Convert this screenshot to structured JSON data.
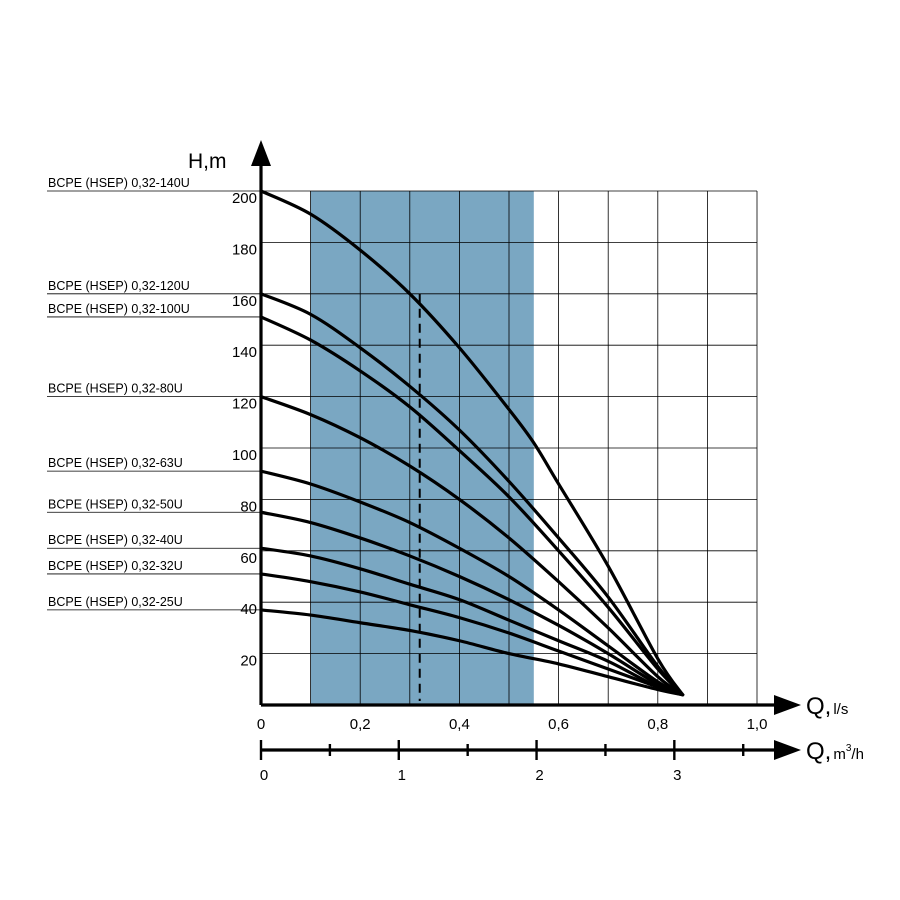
{
  "chart_data": {
    "type": "line",
    "title": "",
    "ylabel": "H,m",
    "xlabel": "Q,",
    "xlabel_unit": "l/s",
    "x2label": "Q,",
    "x2label_unit_base": "m",
    "x2label_unit_sup": "3",
    "x2label_unit_tail": "/h",
    "xlim": [
      0,
      1.0
    ],
    "ylim": [
      0,
      200
    ],
    "x_ticks": [
      "0",
      "0,2",
      "0,4",
      "0,6",
      "0,8",
      "1,0"
    ],
    "y_ticks": [
      "20",
      "40",
      "60",
      "80",
      "100",
      "120",
      "140",
      "160",
      "180",
      "200"
    ],
    "x2_ticks": [
      "0",
      "1",
      "2",
      "3"
    ],
    "grid": true,
    "working_range_ls": [
      0.1,
      0.55
    ],
    "nominal_flow_ls": 0.32,
    "colors": {
      "working_range": "#7aa7c2",
      "curves": "#000000",
      "grid": "#000000"
    },
    "series": [
      {
        "name": "BCPE (HSEP) 0,32-140U",
        "x": [
          0,
          0.1,
          0.2,
          0.3,
          0.4,
          0.5,
          0.55,
          0.6,
          0.7,
          0.8,
          0.85
        ],
        "y": [
          200,
          191,
          177,
          160,
          139,
          115,
          102,
          86,
          54,
          18,
          4
        ]
      },
      {
        "name": "BCPE (HSEP) 0,32-120U",
        "x": [
          0,
          0.1,
          0.2,
          0.3,
          0.4,
          0.5,
          0.6,
          0.7,
          0.8,
          0.85
        ],
        "y": [
          160,
          152,
          139,
          124,
          107,
          87,
          65,
          42,
          15,
          4
        ]
      },
      {
        "name": "BCPE (HSEP) 0,32-100U",
        "x": [
          0,
          0.1,
          0.2,
          0.3,
          0.4,
          0.5,
          0.6,
          0.7,
          0.8,
          0.85
        ],
        "y": [
          151,
          142,
          130,
          116,
          99,
          81,
          60,
          38,
          14,
          4
        ]
      },
      {
        "name": "BCPE (HSEP) 0,32-80U",
        "x": [
          0,
          0.1,
          0.2,
          0.3,
          0.4,
          0.5,
          0.6,
          0.7,
          0.8,
          0.85
        ],
        "y": [
          120,
          113,
          104,
          93,
          80,
          65,
          48,
          30,
          11,
          4
        ]
      },
      {
        "name": "BCPE (HSEP) 0,32-63U",
        "x": [
          0,
          0.1,
          0.2,
          0.3,
          0.4,
          0.5,
          0.6,
          0.7,
          0.8,
          0.85
        ],
        "y": [
          91,
          86,
          79,
          71,
          61,
          50,
          37,
          23,
          9,
          4
        ]
      },
      {
        "name": "BCPE (HSEP) 0,32-50U",
        "x": [
          0,
          0.1,
          0.2,
          0.3,
          0.4,
          0.5,
          0.6,
          0.7,
          0.8,
          0.85
        ],
        "y": [
          75,
          71,
          65,
          58,
          50,
          41,
          31,
          20,
          8,
          4
        ]
      },
      {
        "name": "BCPE (HSEP) 0,32-40U",
        "x": [
          0,
          0.1,
          0.2,
          0.3,
          0.4,
          0.5,
          0.6,
          0.7,
          0.8,
          0.85
        ],
        "y": [
          61,
          58,
          53,
          47,
          41,
          33,
          25,
          17,
          7,
          4
        ]
      },
      {
        "name": "BCPE (HSEP) 0,32-32U",
        "x": [
          0,
          0.1,
          0.2,
          0.3,
          0.4,
          0.5,
          0.6,
          0.7,
          0.8,
          0.85
        ],
        "y": [
          51,
          48,
          44,
          39,
          34,
          28,
          21,
          14,
          7,
          4
        ]
      },
      {
        "name": "BCPE (HSEP) 0,32-25U",
        "x": [
          0,
          0.1,
          0.2,
          0.3,
          0.4,
          0.5,
          0.6,
          0.7,
          0.8,
          0.85
        ],
        "y": [
          37,
          35,
          32,
          29,
          25,
          20,
          16,
          11,
          6,
          4
        ]
      }
    ]
  }
}
